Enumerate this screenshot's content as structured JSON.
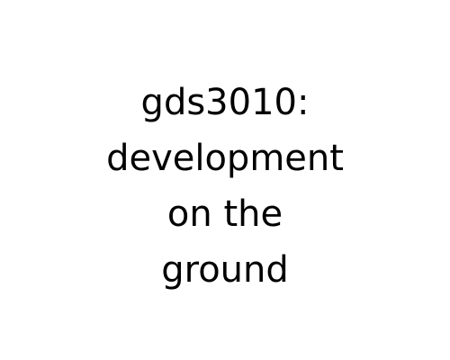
{
  "title": {
    "lines": [
      "gds3010:",
      "development",
      "on the",
      "ground"
    ]
  }
}
